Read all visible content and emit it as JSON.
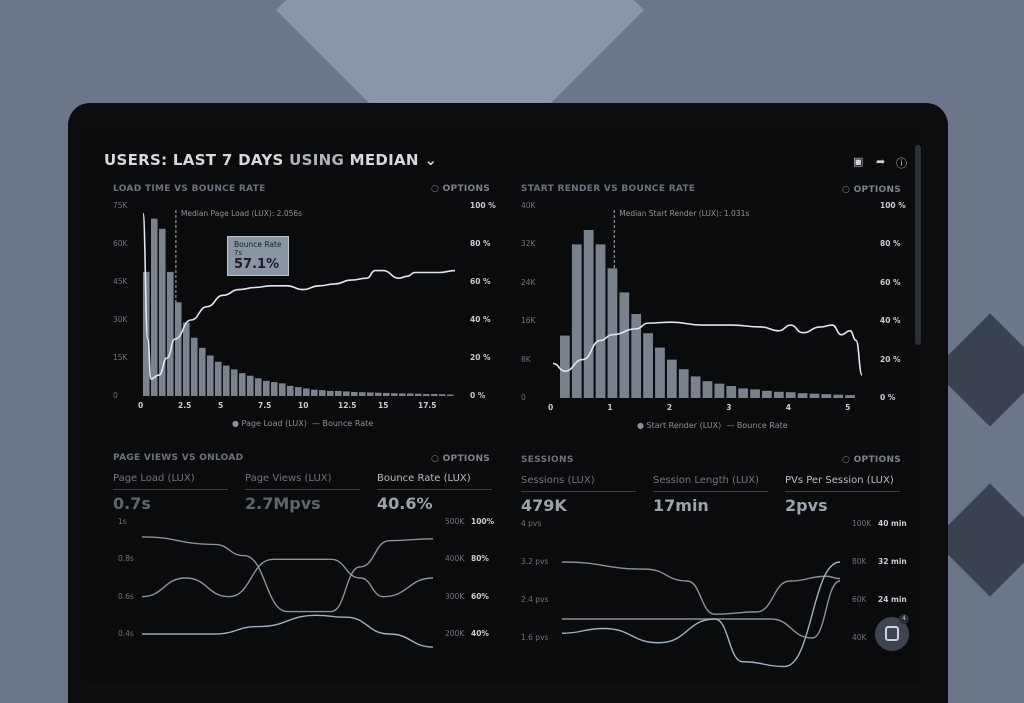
{
  "header": {
    "title_bold": "USERS:",
    "title_mid": "LAST 7 DAYS",
    "title_dim": "USING",
    "title_end": "MEDIAN",
    "icons": [
      "monitor-icon",
      "share-icon",
      "help-icon"
    ]
  },
  "options_label": "OPTIONS",
  "chart_data": [
    {
      "type": "bar",
      "title": "LOAD TIME VS BOUNCE RATE",
      "annotation": "Median Page Load (LUX): 2.056s",
      "median": 2.056,
      "x_ticks": [
        "0",
        "2.5",
        "5",
        "7.5",
        "10",
        "12.5",
        "15",
        "17.5"
      ],
      "y_ticks": [
        "0",
        "15K",
        "30K",
        "45K",
        "60K",
        "75K"
      ],
      "y2_ticks": [
        "0 %",
        "20 %",
        "40 %",
        "60 %",
        "80 %",
        "100 %"
      ],
      "xlim": [
        0,
        19.5
      ],
      "ylim": [
        0,
        75000
      ],
      "y2lim": [
        0,
        100
      ],
      "x": [
        0,
        0.5,
        1,
        1.5,
        2,
        2.5,
        3,
        3.5,
        4,
        4.5,
        5,
        5.5,
        6,
        6.5,
        7,
        7.5,
        8,
        8.5,
        9,
        9.5,
        10,
        10.5,
        11,
        11.5,
        12,
        12.5,
        13,
        13.5,
        14,
        14.5,
        15,
        15.5,
        16,
        16.5,
        17,
        17.5,
        18,
        18.5,
        19
      ],
      "series": [
        {
          "name": "Page Load (LUX)",
          "type": "bar",
          "values": [
            49000,
            70000,
            66000,
            49000,
            37000,
            29000,
            23000,
            19000,
            16000,
            13500,
            12000,
            10500,
            9000,
            8000,
            7000,
            6000,
            5500,
            5000,
            4000,
            3500,
            3000,
            2500,
            2300,
            2000,
            2000,
            1800,
            1600,
            1500,
            1400,
            1300,
            1200,
            1100,
            1000,
            1000,
            900,
            800,
            800,
            700,
            600
          ]
        },
        {
          "name": "Bounce Rate",
          "type": "line",
          "axis": "right",
          "points": [
            [
              0,
              96
            ],
            [
              0.3,
              30
            ],
            [
              0.5,
              9
            ],
            [
              1,
              11
            ],
            [
              1.5,
              20
            ],
            [
              2,
              30
            ],
            [
              3,
              40
            ],
            [
              4,
              47
            ],
            [
              5,
              53
            ],
            [
              6,
              56
            ],
            [
              7,
              57.1
            ],
            [
              8,
              58
            ],
            [
              9,
              58
            ],
            [
              10,
              56
            ],
            [
              11,
              58
            ],
            [
              12,
              59
            ],
            [
              13,
              61
            ],
            [
              14,
              62
            ],
            [
              14.5,
              66
            ],
            [
              15,
              66
            ],
            [
              16,
              62
            ],
            [
              16.5,
              63
            ],
            [
              17,
              65
            ],
            [
              18.5,
              65
            ],
            [
              19.5,
              66
            ]
          ]
        }
      ],
      "tooltip": {
        "title": "Bounce Rate",
        "sub": "7s",
        "value": "57.1%"
      }
    },
    {
      "type": "bar",
      "title": "START RENDER VS BOUNCE RATE",
      "annotation": "Median Start Render (LUX): 1.031s",
      "median": 1.031,
      "x_ticks": [
        "0",
        "1",
        "2",
        "3",
        "4",
        "5"
      ],
      "y_ticks": [
        "0",
        "8K",
        "16K",
        "24K",
        "32K",
        "40K"
      ],
      "y2_ticks": [
        "0 %",
        "20 %",
        "40 %",
        "60 %",
        "80 %",
        "100 %"
      ],
      "xlim": [
        0,
        5.2
      ],
      "ylim": [
        0,
        40000
      ],
      "y2lim": [
        0,
        100
      ],
      "x": [
        0.2,
        0.4,
        0.6,
        0.8,
        1,
        1.2,
        1.4,
        1.6,
        1.8,
        2,
        2.2,
        2.4,
        2.6,
        2.8,
        3,
        3.2,
        3.4,
        3.6,
        3.8,
        4,
        4.2,
        4.4,
        4.6,
        4.8,
        5
      ],
      "series": [
        {
          "name": "Start Render (LUX)",
          "type": "bar",
          "values": [
            13000,
            32000,
            35000,
            32000,
            27000,
            22000,
            17500,
            13500,
            10500,
            8000,
            6000,
            4500,
            3500,
            3000,
            2500,
            2000,
            1800,
            1500,
            1300,
            1200,
            1000,
            900,
            800,
            700,
            600
          ]
        },
        {
          "name": "Bounce Rate",
          "type": "line",
          "axis": "right",
          "points": [
            [
              0,
              18
            ],
            [
              0.2,
              14
            ],
            [
              0.5,
              20
            ],
            [
              0.8,
              30
            ],
            [
              1,
              33
            ],
            [
              1.4,
              36
            ],
            [
              1.6,
              39
            ],
            [
              2,
              39.5
            ],
            [
              2.5,
              38
            ],
            [
              3,
              38
            ],
            [
              3.5,
              37
            ],
            [
              3.8,
              35
            ],
            [
              4,
              38
            ],
            [
              4.2,
              34
            ],
            [
              4.5,
              37
            ],
            [
              4.7,
              38
            ],
            [
              4.85,
              33
            ],
            [
              5,
              35
            ],
            [
              5.1,
              30
            ],
            [
              5.2,
              12
            ]
          ]
        }
      ]
    },
    {
      "type": "line",
      "title": "PAGE VIEWS VS ONLOAD",
      "metrics": [
        {
          "label": "Page Load (LUX)",
          "value": "0.7s"
        },
        {
          "label": "Page Views (LUX)",
          "value": "2.7Mpvs"
        },
        {
          "label": "Bounce Rate (LUX)",
          "value": "40.6%"
        }
      ],
      "y_ticks": [
        "1s",
        "0.8s",
        "0.6s",
        "0.4s"
      ],
      "y2_ticks": [
        "500K",
        "400K",
        "300K",
        "200K"
      ],
      "y3_ticks": [
        "100%",
        "80%",
        "60%",
        "40%"
      ],
      "ylim": [
        0.4,
        1.0
      ],
      "series": [
        {
          "points": [
            [
              0,
              0.92
            ],
            [
              0.25,
              0.88
            ],
            [
              0.35,
              0.82
            ],
            [
              0.5,
              0.52
            ],
            [
              0.65,
              0.52
            ],
            [
              0.75,
              0.76
            ],
            [
              0.85,
              0.9
            ],
            [
              1,
              0.91
            ]
          ]
        },
        {
          "points": [
            [
              0,
              0.6
            ],
            [
              0.15,
              0.7
            ],
            [
              0.3,
              0.6
            ],
            [
              0.45,
              0.8
            ],
            [
              0.65,
              0.8
            ],
            [
              0.75,
              0.7
            ],
            [
              0.83,
              0.6
            ],
            [
              1,
              0.7
            ]
          ]
        },
        {
          "points": [
            [
              0,
              0.4
            ],
            [
              0.25,
              0.4
            ],
            [
              0.4,
              0.44
            ],
            [
              0.6,
              0.5
            ],
            [
              0.7,
              0.49
            ],
            [
              0.85,
              0.4
            ],
            [
              1,
              0.33
            ]
          ]
        }
      ]
    },
    {
      "type": "line",
      "title": "SESSIONS",
      "metrics": [
        {
          "label": "Sessions (LUX)",
          "value": "479K"
        },
        {
          "label": "Session Length (LUX)",
          "value": "17min"
        },
        {
          "label": "PVs Per Session (LUX)",
          "value": "2pvs"
        }
      ],
      "y_ticks": [
        "4 pvs",
        "3.2 pvs",
        "2.4 pvs",
        "1.6 pvs"
      ],
      "y2_ticks": [
        "100K",
        "80K",
        "60K",
        "40K"
      ],
      "y3_ticks": [
        "40 min",
        "32 min",
        "24 min"
      ],
      "ylim": [
        1.6,
        4.0
      ],
      "series": [
        {
          "points": [
            [
              0,
              3.2
            ],
            [
              0.3,
              3.05
            ],
            [
              0.45,
              2.8
            ],
            [
              0.55,
              2.1
            ],
            [
              0.7,
              2.15
            ],
            [
              0.82,
              2.8
            ],
            [
              0.95,
              2.9
            ],
            [
              1,
              2.85
            ]
          ]
        },
        {
          "points": [
            [
              0,
              2.0
            ],
            [
              0.5,
              2.0
            ],
            [
              0.75,
              2.0
            ],
            [
              0.9,
              1.6
            ],
            [
              1,
              2.8
            ]
          ]
        },
        {
          "points": [
            [
              0,
              1.7
            ],
            [
              0.15,
              1.8
            ],
            [
              0.35,
              1.5
            ],
            [
              0.55,
              2.0
            ],
            [
              0.65,
              1.1
            ],
            [
              0.8,
              1.0
            ],
            [
              1,
              3.2
            ]
          ]
        }
      ]
    }
  ],
  "chat_badge": "4",
  "colors": {
    "bars": "#7a828d",
    "line": "#dfe6f0",
    "background": "#0a0b0d"
  }
}
